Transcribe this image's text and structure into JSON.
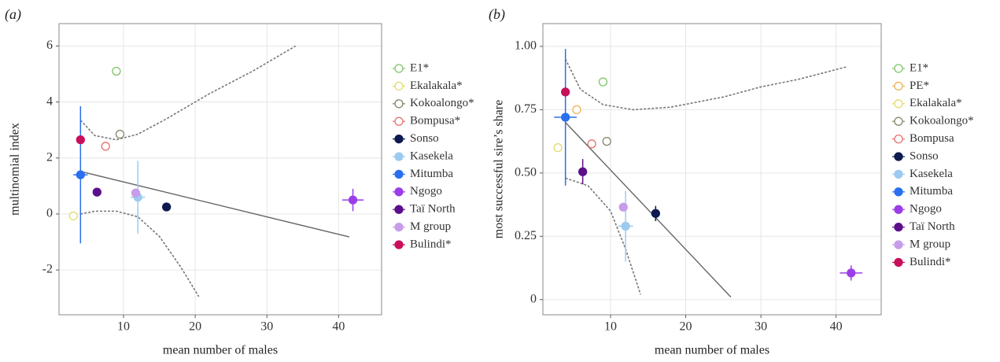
{
  "chart_data": [
    {
      "type": "scatter",
      "panel": "(a)",
      "x_label": "mean number of males",
      "y_label": "multinomial index",
      "xlim": [
        1,
        46
      ],
      "xticks": [
        10,
        20,
        30,
        40
      ],
      "ylim": [
        -3.6,
        6.8
      ],
      "yticks": [
        -2,
        0,
        2,
        4,
        6
      ],
      "grid": true,
      "series": [
        {
          "name": "E1*",
          "color": "#7fc466",
          "filled": false,
          "x": [
            9
          ],
          "values": [
            5.1
          ]
        },
        {
          "name": "Ekalakala*",
          "color": "#e3da6c",
          "filled": false,
          "x": [
            3
          ],
          "values": [
            -0.07
          ]
        },
        {
          "name": "Kokoalongo*",
          "color": "#85846a",
          "filled": false,
          "x": [
            9.5
          ],
          "values": [
            2.85
          ]
        },
        {
          "name": "Bompusa*",
          "color": "#e87070",
          "filled": false,
          "x": [
            7.5
          ],
          "values": [
            2.42
          ]
        },
        {
          "name": "Sonso",
          "color": "#0d1a4f",
          "filled": true,
          "x": [
            16
          ],
          "values": [
            0.25
          ]
        },
        {
          "name": "Kasekela",
          "color": "#9ccaf0",
          "filled": true,
          "x": [
            12
          ],
          "values": [
            0.6
          ],
          "yerr": [
            1.3
          ],
          "xerr": [
            1
          ]
        },
        {
          "name": "Mitumba",
          "color": "#2a6ff0",
          "filled": true,
          "x": [
            4
          ],
          "values": [
            1.4
          ],
          "yerr": [
            2.45
          ],
          "xerr": [
            1
          ]
        },
        {
          "name": "Ngogo",
          "color": "#9b3ee8",
          "filled": true,
          "x": [
            42
          ],
          "values": [
            0.5
          ],
          "yerr": [
            0.4
          ],
          "xerr": [
            1.5
          ]
        },
        {
          "name": "Taï North",
          "color": "#5c0f8a",
          "filled": true,
          "x": [
            6.3
          ],
          "values": [
            0.78
          ]
        },
        {
          "name": "M group",
          "color": "#c79ce8",
          "filled": true,
          "x": [
            11.7
          ],
          "values": [
            0.75
          ]
        },
        {
          "name": "Bulindi*",
          "color": "#c8105a",
          "filled": true,
          "x": [
            4
          ],
          "values": [
            2.65
          ]
        }
      ],
      "lines": [
        {
          "style": "solid",
          "color": "#666",
          "x": [
            4,
            41.5
          ],
          "values": [
            1.52,
            -0.82
          ]
        },
        {
          "style": "dashed",
          "color": "#777",
          "x": [
            4,
            6,
            9,
            12,
            16,
            22,
            28,
            34
          ],
          "values": [
            3.35,
            2.8,
            2.65,
            2.85,
            3.4,
            4.3,
            5.1,
            6.0
          ]
        },
        {
          "style": "dashed",
          "color": "#777",
          "x": [
            4,
            6,
            9,
            12,
            15,
            18,
            20.5
          ],
          "values": [
            0.0,
            0.1,
            0.1,
            -0.1,
            -0.8,
            -1.9,
            -2.95
          ]
        }
      ]
    },
    {
      "type": "scatter",
      "panel": "(b)",
      "x_label": "mean number of males",
      "y_label": "most successful sire’s share",
      "xlim": [
        1,
        46
      ],
      "xticks": [
        10,
        20,
        30,
        40
      ],
      "ylim": [
        -0.06,
        1.09
      ],
      "yticks": [
        {
          "value": 0,
          "label": "0"
        },
        0.25,
        {
          "value": 0.5,
          "label": "0.50"
        },
        0.75,
        {
          "value": 1,
          "label": "1.00"
        }
      ],
      "grid": true,
      "series": [
        {
          "name": "E1*",
          "color": "#7fc466",
          "filled": false,
          "x": [
            9
          ],
          "values": [
            0.86
          ]
        },
        {
          "name": "PE*",
          "color": "#f0b050",
          "filled": false,
          "x": [
            5.5
          ],
          "values": [
            0.75
          ]
        },
        {
          "name": "Ekalakala*",
          "color": "#e3da6c",
          "filled": false,
          "x": [
            3
          ],
          "values": [
            0.6
          ]
        },
        {
          "name": "Kokoalongo*",
          "color": "#85846a",
          "filled": false,
          "x": [
            9.5
          ],
          "values": [
            0.625
          ]
        },
        {
          "name": "Bompusa",
          "color": "#e87070",
          "filled": false,
          "x": [
            7.5
          ],
          "values": [
            0.615
          ]
        },
        {
          "name": "Sonso",
          "color": "#0d1a4f",
          "filled": true,
          "x": [
            16
          ],
          "values": [
            0.34
          ],
          "yerr": [
            0.03
          ]
        },
        {
          "name": "Kasekela",
          "color": "#9ccaf0",
          "filled": true,
          "x": [
            12
          ],
          "values": [
            0.29
          ],
          "yerr": [
            0.14
          ],
          "xerr": [
            1
          ]
        },
        {
          "name": "Mitumba",
          "color": "#2a6ff0",
          "filled": true,
          "x": [
            4
          ],
          "values": [
            0.72
          ],
          "yerr": [
            0.27
          ],
          "xerr": [
            1.5
          ]
        },
        {
          "name": "Ngogo",
          "color": "#9b3ee8",
          "filled": true,
          "x": [
            42
          ],
          "values": [
            0.105
          ],
          "yerr": [
            0.03
          ],
          "xerr": [
            1.5
          ]
        },
        {
          "name": "Taï North",
          "color": "#5c0f8a",
          "filled": true,
          "x": [
            6.3
          ],
          "values": [
            0.505
          ],
          "yerr": [
            0.05
          ]
        },
        {
          "name": "M group",
          "color": "#c79ce8",
          "filled": true,
          "x": [
            11.7
          ],
          "values": [
            0.365
          ]
        },
        {
          "name": "Bulindi*",
          "color": "#c8105a",
          "filled": true,
          "x": [
            4
          ],
          "values": [
            0.82
          ]
        }
      ],
      "lines": [
        {
          "style": "solid",
          "color": "#666",
          "x": [
            4,
            26
          ],
          "values": [
            0.7,
            0.01
          ]
        },
        {
          "style": "dashed",
          "color": "#777",
          "x": [
            4,
            6,
            9,
            13,
            18,
            25,
            30,
            35,
            41.5
          ],
          "values": [
            0.95,
            0.83,
            0.77,
            0.75,
            0.76,
            0.8,
            0.84,
            0.87,
            0.92
          ]
        },
        {
          "style": "dashed",
          "color": "#777",
          "x": [
            4,
            7,
            10,
            12,
            14
          ],
          "values": [
            0.48,
            0.45,
            0.35,
            0.2,
            0.02
          ]
        }
      ]
    }
  ]
}
